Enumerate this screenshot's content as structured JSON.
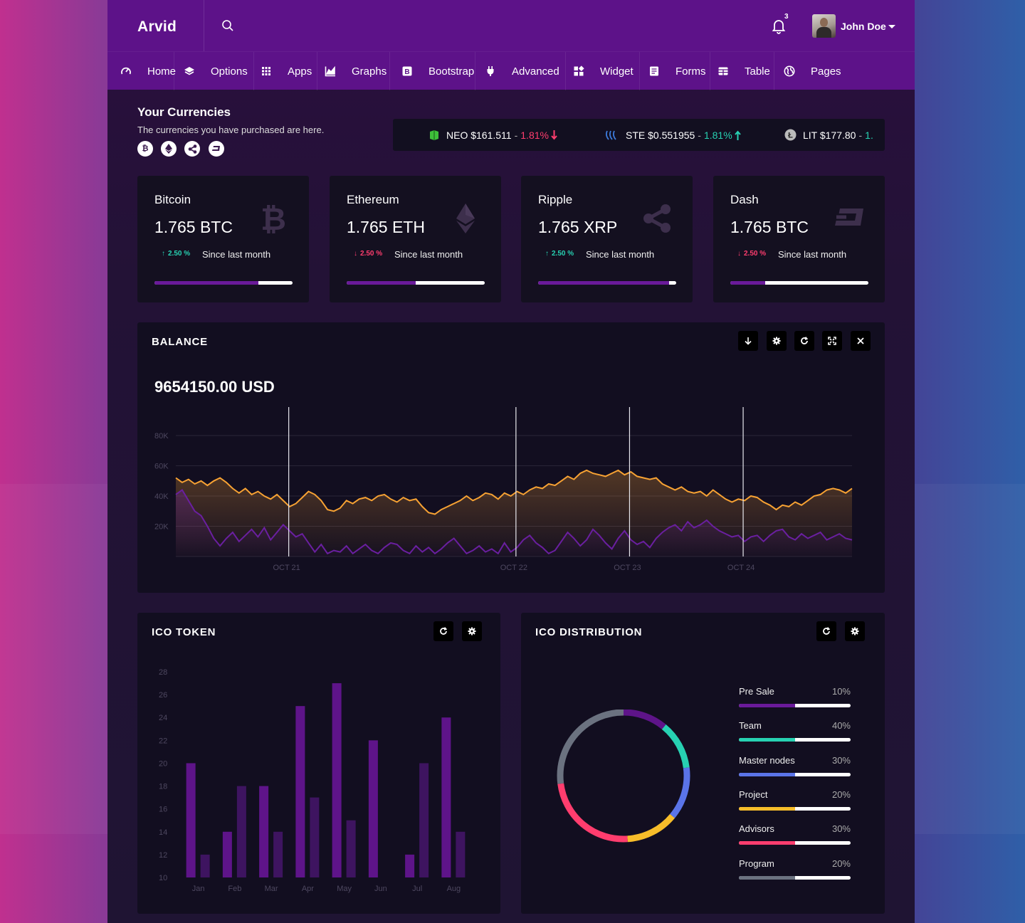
{
  "header": {
    "brand": "Arvid",
    "notification_count": "3",
    "user_name": "John Doe"
  },
  "nav": [
    {
      "label": "Home",
      "icon": "dashboard-icon"
    },
    {
      "label": "Options",
      "icon": "layers-icon"
    },
    {
      "label": "Apps",
      "icon": "apps-grid-icon"
    },
    {
      "label": "Graphs",
      "icon": "area-chart-icon"
    },
    {
      "label": "Bootstrap",
      "icon": "bootstrap-icon"
    },
    {
      "label": "Advanced",
      "icon": "plug-icon"
    },
    {
      "label": "Widget",
      "icon": "widget-icon"
    },
    {
      "label": "Forms",
      "icon": "form-icon"
    },
    {
      "label": "Table",
      "icon": "table-icon"
    },
    {
      "label": "Pages",
      "icon": "globe-icon"
    }
  ],
  "currencies": {
    "title": "Your Currencies",
    "subtitle": "The currencies you have purchased are here.",
    "coin_icons": [
      "bitcoin-icon",
      "ethereum-icon",
      "ripple-icon",
      "dash-icon"
    ]
  },
  "ticker": [
    {
      "icon": "neo-icon",
      "text": "NEO $161.511",
      "change": "1.81%",
      "direction": "down"
    },
    {
      "icon": "steem-icon",
      "text": "STE $0.551955",
      "change": "1.81%",
      "direction": "up"
    },
    {
      "icon": "litecoin-icon",
      "text": "LIT $177.80",
      "change": "1.",
      "direction": "up"
    }
  ],
  "cards": [
    {
      "name": "Bitcoin",
      "amount": "1.765 BTC",
      "change": "2.50 %",
      "direction": "up",
      "since": "Since last month",
      "progress": 0.75,
      "icon": "bitcoin-icon"
    },
    {
      "name": "Ethereum",
      "amount": "1.765 ETH",
      "change": "2.50 %",
      "direction": "down",
      "since": "Since last month",
      "progress": 0.5,
      "icon": "ethereum-icon"
    },
    {
      "name": "Ripple",
      "amount": "1.765 XRP",
      "change": "2.50 %",
      "direction": "up",
      "since": "Since last month",
      "progress": 0.95,
      "icon": "ripple-icon"
    },
    {
      "name": "Dash",
      "amount": "1.765 BTC",
      "change": "2.50 %",
      "direction": "down",
      "since": "Since last month",
      "progress": 0.25,
      "icon": "dash-icon"
    }
  ],
  "balance": {
    "title": "BALANCE",
    "value": "9654150.00 USD",
    "controls": [
      "download-icon",
      "gear-icon",
      "refresh-icon",
      "expand-icon",
      "close-icon"
    ]
  },
  "ico_token": {
    "title": "ICO TOKEN",
    "controls": [
      "refresh-icon",
      "gear-icon"
    ]
  },
  "ico_distribution": {
    "title": "ICO DISTRIBUTION",
    "controls": [
      "refresh-icon",
      "gear-icon"
    ],
    "items": [
      {
        "label": "Pre Sale",
        "pct": "10%",
        "color": "#6a1a9a",
        "fill": 0.5
      },
      {
        "label": "Team",
        "pct": "40%",
        "color": "#27d1b2",
        "fill": 0.5
      },
      {
        "label": "Master nodes",
        "pct": "30%",
        "color": "#5a74e8",
        "fill": 0.5
      },
      {
        "label": "Project",
        "pct": "20%",
        "color": "#f7bd2a",
        "fill": 0.5
      },
      {
        "label": "Advisors",
        "pct": "30%",
        "color": "#ff3d6e",
        "fill": 0.5
      },
      {
        "label": "Program",
        "pct": "20%",
        "color": "#6b7280",
        "fill": 0.5
      }
    ]
  },
  "chart_data": [
    {
      "type": "area",
      "yticks": [
        "80K",
        "60K",
        "40K",
        "20K"
      ],
      "ylim": [
        0,
        80000
      ],
      "xticks": [
        {
          "label": "OCT 21",
          "x": 0.167
        },
        {
          "label": "OCT 22",
          "x": 0.503
        },
        {
          "label": "OCT 23",
          "x": 0.671
        },
        {
          "label": "OCT 24",
          "x": 0.839
        }
      ],
      "series": [
        {
          "color": "#f7a233",
          "values": [
            52000,
            49000,
            51000,
            48000,
            50000,
            47000,
            50000,
            52000,
            49000,
            45000,
            42000,
            45000,
            41000,
            43000,
            40000,
            38000,
            41000,
            37000,
            33000,
            35000,
            39000,
            43000,
            41000,
            37000,
            31000,
            30000,
            32000,
            37000,
            35000,
            38000,
            39000,
            37000,
            40000,
            41000,
            38000,
            36000,
            39000,
            37000,
            38000,
            33000,
            29000,
            28000,
            31000,
            33000,
            35000,
            37000,
            40000,
            37000,
            39000,
            42000,
            41000,
            38000,
            42000,
            40000,
            43000,
            41000,
            44000,
            46000,
            45000,
            48000,
            47000,
            50000,
            53000,
            51000,
            55000,
            57000,
            55000,
            54000,
            53000,
            55000,
            57000,
            54000,
            56000,
            53000,
            52000,
            51000,
            52000,
            48000,
            46000,
            44000,
            46000,
            43000,
            42000,
            43000,
            40000,
            44000,
            41000,
            38000,
            36000,
            38000,
            37000,
            40000,
            39000,
            36000,
            34000,
            31000,
            34000,
            33000,
            36000,
            34000,
            37000,
            40000,
            41000,
            44000,
            45000,
            44000,
            42000,
            45000
          ]
        },
        {
          "color": "#6a1fa0",
          "values": [
            41000,
            44000,
            37000,
            30000,
            27000,
            20000,
            12000,
            7000,
            12000,
            16000,
            10000,
            14000,
            18000,
            13000,
            19000,
            11000,
            16000,
            21000,
            17000,
            13000,
            15000,
            9000,
            3000,
            8000,
            2000,
            4000,
            3000,
            7000,
            2000,
            5000,
            8000,
            4000,
            2000,
            6000,
            9000,
            8000,
            4000,
            2000,
            7000,
            3000,
            6000,
            2000,
            5000,
            9000,
            12000,
            7000,
            2000,
            4000,
            7000,
            3000,
            5000,
            2000,
            9000,
            3000,
            6000,
            11000,
            14000,
            9000,
            6000,
            2000,
            4000,
            10000,
            16000,
            12000,
            7000,
            11000,
            18000,
            14000,
            9000,
            5000,
            12000,
            17000,
            11000,
            8000,
            10000,
            6000,
            12000,
            16000,
            19000,
            21000,
            17000,
            23000,
            19000,
            21000,
            24000,
            20000,
            17000,
            15000,
            13000,
            14000,
            10000,
            13000,
            14000,
            10000,
            14000,
            17000,
            18000,
            13000,
            11000,
            15000,
            12000,
            14000,
            16000,
            11000,
            13000,
            15000,
            12000,
            11000
          ]
        }
      ]
    },
    {
      "type": "bar",
      "categories": [
        "Jan",
        "Feb",
        "Mar",
        "Apr",
        "May",
        "Jun",
        "Jul",
        "Aug"
      ],
      "yticks": [
        "28",
        "26",
        "24",
        "22",
        "20",
        "18",
        "16",
        "14",
        "12",
        "10"
      ],
      "ylim": [
        10,
        28
      ],
      "series": [
        {
          "color": "#5e1489",
          "values": [
            20,
            14,
            18,
            25,
            27,
            22,
            12,
            24
          ]
        },
        {
          "color": "#3e1460",
          "values": [
            12,
            18,
            14,
            17,
            15,
            10,
            20,
            14
          ]
        }
      ]
    },
    {
      "type": "pie",
      "labels": [
        "Purple",
        "Teal",
        "Blue",
        "Yellow",
        "Pink",
        "Gray"
      ],
      "values": [
        11,
        12,
        13,
        13,
        24,
        27
      ],
      "colors": [
        "#5e1489",
        "#27d1b2",
        "#5a74e8",
        "#f7bd2a",
        "#ff3d6e",
        "#6b7280"
      ]
    }
  ]
}
